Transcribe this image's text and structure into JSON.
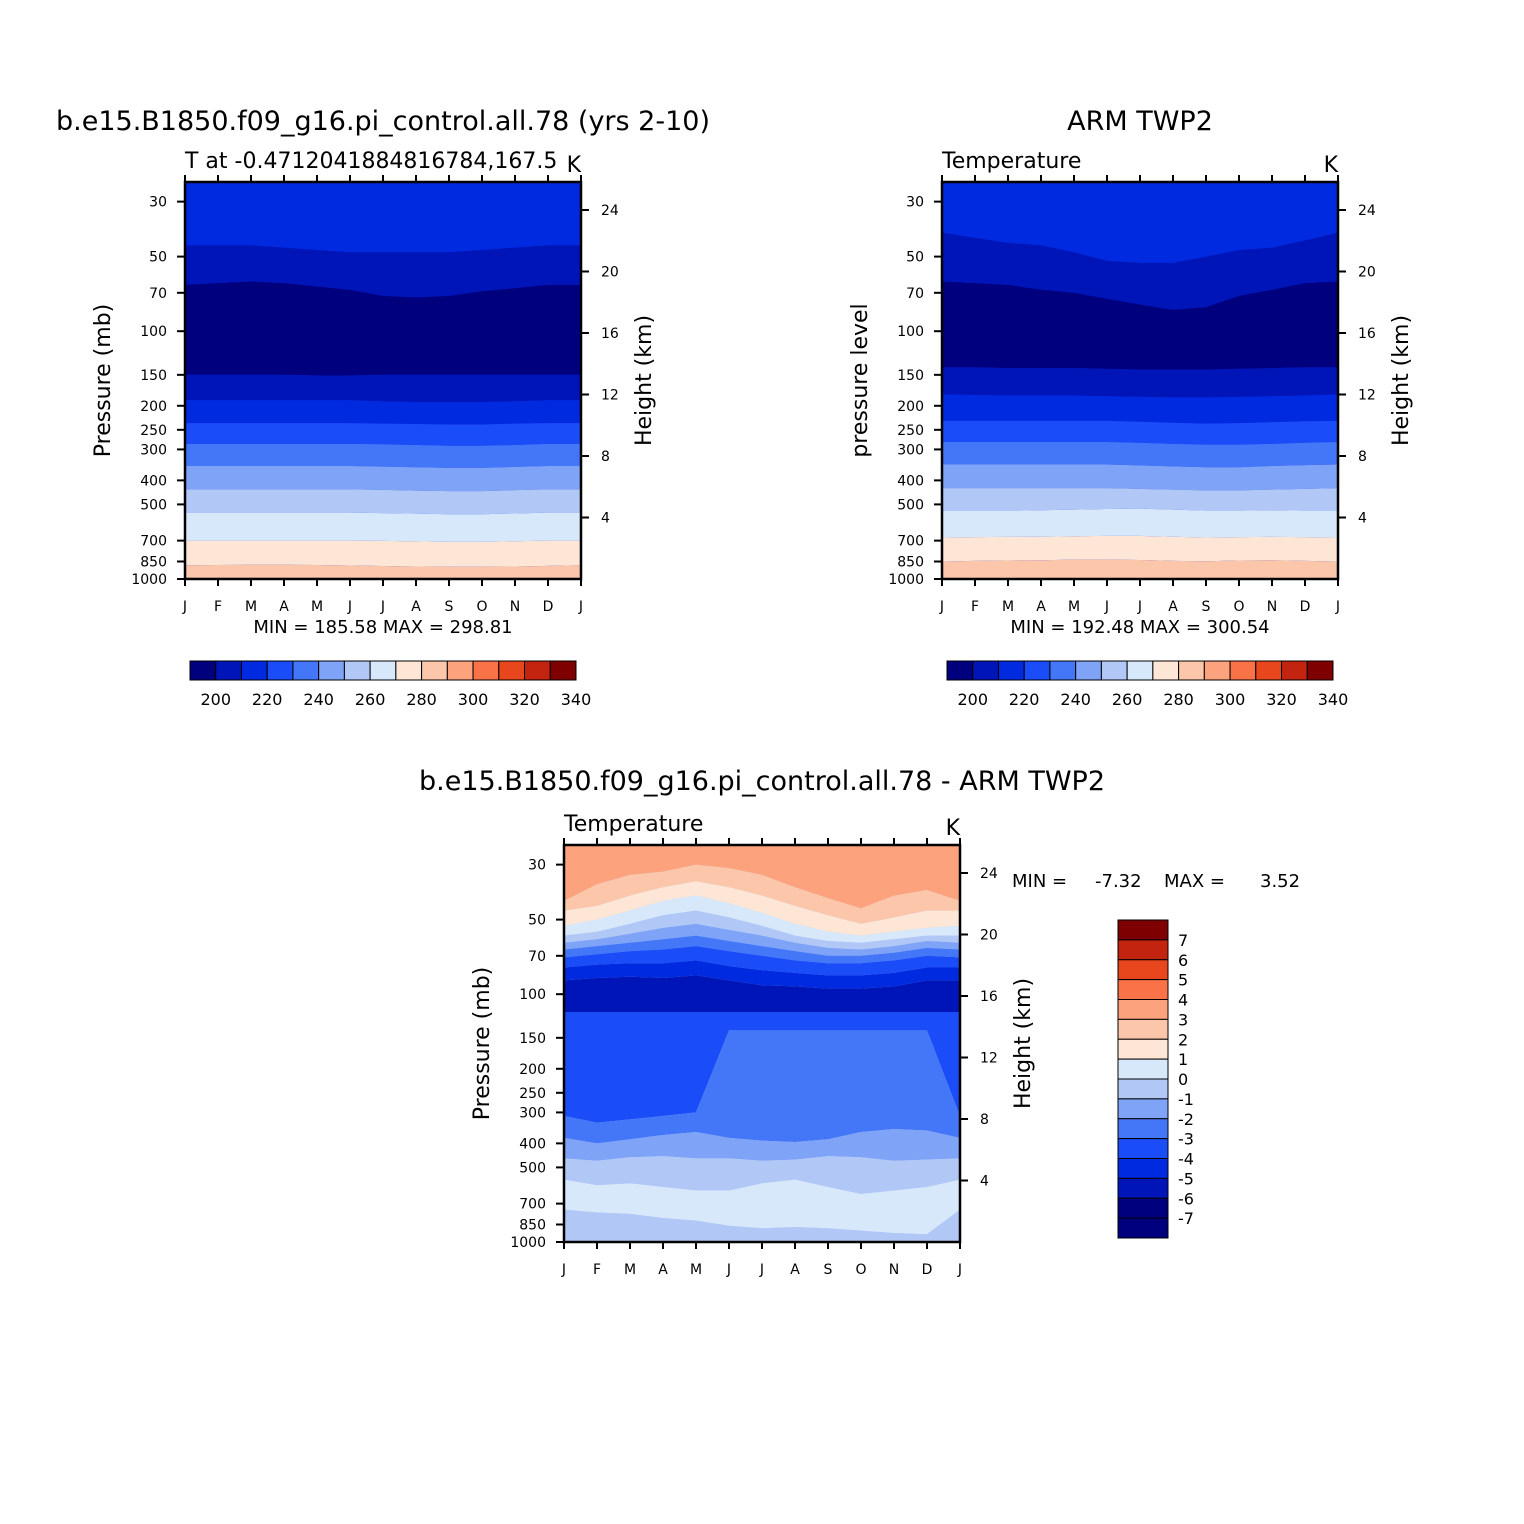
{
  "colors": {
    "temperature_palette": [
      "#00007f",
      "#0015b8",
      "#002ae0",
      "#1a4cf7",
      "#4477f7",
      "#7fa3f7",
      "#b1c8f7",
      "#d8e8fb",
      "#fde6d5",
      "#fcc6aa",
      "#fca27c",
      "#fa7247",
      "#e8461c",
      "#c2240f",
      "#7f0000"
    ],
    "difference_palette": [
      "#00007f",
      "#0015b8",
      "#002ae0",
      "#1a4cf7",
      "#4477f7",
      "#7fa3f7",
      "#b1c8f7",
      "#d8e8fb",
      "#fde6d5",
      "#fcc6aa",
      "#fca27c",
      "#fa7247",
      "#e8461c",
      "#c2240f",
      "#7f0000"
    ]
  },
  "chart_data": [
    {
      "id": "model",
      "type": "contour",
      "title": "b.e15.B1850.f09_g16.pi_control.all.78 (yrs 2-10)",
      "subtitle_left": "T at -0.4712041884816784,167.5",
      "subtitle_right": "K",
      "ylabel": "Pressure (mb)",
      "ylabel_right": "Height (km)",
      "y_scale": "log",
      "ylim": [
        1000,
        25
      ],
      "pressure_ticks": [
        "30",
        "50",
        "70",
        "100",
        "150",
        "200",
        "250",
        "300",
        "400",
        "500",
        "700",
        "850",
        "1000"
      ],
      "height_ticks": [
        "24",
        "20",
        "16",
        "12",
        "8",
        "4"
      ],
      "months": [
        "J",
        "F",
        "M",
        "A",
        "M",
        "J",
        "J",
        "A",
        "S",
        "O",
        "N",
        "D",
        "J"
      ],
      "minmax": "MIN =  185.58  MAX =  298.81",
      "colorbar_labels": [
        "200",
        "220",
        "240",
        "260",
        "280",
        "300",
        "320",
        "340"
      ],
      "levels": [
        195,
        200,
        205,
        210,
        215,
        220,
        230,
        240,
        250,
        260,
        270,
        280,
        290,
        300,
        310,
        320,
        330,
        340
      ],
      "boundaries": [
        {
          "level": 205,
          "pressure": [
            45,
            45,
            45,
            46,
            47,
            48,
            48,
            48,
            48,
            47,
            46,
            45,
            45
          ]
        },
        {
          "level": 200,
          "pressure": [
            65,
            64,
            63,
            64,
            66,
            68,
            72,
            73,
            72,
            69,
            67,
            65,
            65
          ]
        },
        {
          "level": 205,
          "pressure": [
            150,
            150,
            150,
            150,
            151,
            151,
            150,
            150,
            150,
            150,
            150,
            150,
            150
          ]
        },
        {
          "level": 215,
          "pressure": [
            190,
            190,
            190,
            190,
            190,
            190,
            192,
            193,
            193,
            193,
            192,
            190,
            190
          ]
        },
        {
          "level": 225,
          "pressure": [
            235,
            235,
            235,
            235,
            235,
            235,
            236,
            237,
            238,
            238,
            236,
            235,
            235
          ]
        },
        {
          "level": 235,
          "pressure": [
            285,
            285,
            285,
            285,
            285,
            285,
            286,
            288,
            290,
            290,
            288,
            285,
            285
          ]
        },
        {
          "level": 245,
          "pressure": [
            350,
            350,
            350,
            350,
            350,
            350,
            352,
            354,
            356,
            356,
            353,
            350,
            350
          ]
        },
        {
          "level": 255,
          "pressure": [
            435,
            435,
            435,
            435,
            435,
            435,
            437,
            440,
            442,
            442,
            438,
            435,
            435
          ]
        },
        {
          "level": 265,
          "pressure": [
            540,
            540,
            540,
            540,
            540,
            540,
            542,
            545,
            548,
            548,
            544,
            540,
            540
          ]
        },
        {
          "level": 275,
          "pressure": [
            700,
            700,
            700,
            700,
            700,
            700,
            702,
            705,
            708,
            708,
            704,
            700,
            700
          ]
        },
        {
          "level": 285,
          "pressure": [
            880,
            878,
            876,
            876,
            878,
            882,
            886,
            890,
            892,
            892,
            890,
            885,
            880
          ]
        },
        {
          "level": 295,
          "pressure": [
            990,
            990,
            990,
            990,
            990,
            990,
            990,
            990,
            990,
            990,
            990,
            990,
            990
          ]
        }
      ]
    },
    {
      "id": "obs",
      "type": "contour",
      "title": "ARM TWP2",
      "subtitle_left": "Temperature",
      "subtitle_right": "K",
      "ylabel": "pressure level",
      "ylabel_right": "Height (km)",
      "y_scale": "log",
      "ylim": [
        1000,
        25
      ],
      "pressure_ticks": [
        "30",
        "50",
        "70",
        "100",
        "150",
        "200",
        "250",
        "300",
        "400",
        "500",
        "700",
        "850",
        "1000"
      ],
      "height_ticks": [
        "24",
        "20",
        "16",
        "12",
        "8",
        "4"
      ],
      "months": [
        "J",
        "F",
        "M",
        "A",
        "M",
        "J",
        "J",
        "A",
        "S",
        "O",
        "N",
        "D",
        "J"
      ],
      "minmax": "MIN =  192.48  MAX =  300.54",
      "colorbar_labels": [
        "200",
        "220",
        "240",
        "260",
        "280",
        "300",
        "320",
        "340"
      ],
      "boundaries": [
        {
          "level": 205,
          "pressure": [
            40,
            42,
            44,
            45,
            48,
            52,
            53,
            53,
            50,
            47,
            46,
            43,
            40
          ]
        },
        {
          "level": 200,
          "pressure": [
            63,
            64,
            65,
            68,
            70,
            74,
            78,
            82,
            80,
            72,
            68,
            64,
            63
          ]
        },
        {
          "level": 205,
          "pressure": [
            140,
            140,
            141,
            141,
            141,
            142,
            143,
            143,
            143,
            142,
            141,
            140,
            140
          ]
        },
        {
          "level": 215,
          "pressure": [
            180,
            181,
            182,
            182,
            182,
            183,
            184,
            185,
            185,
            184,
            183,
            182,
            180
          ]
        },
        {
          "level": 225,
          "pressure": [
            230,
            230,
            230,
            230,
            230,
            230,
            232,
            234,
            236,
            235,
            233,
            231,
            230
          ]
        },
        {
          "level": 235,
          "pressure": [
            280,
            280,
            280,
            280,
            280,
            280,
            282,
            285,
            287,
            287,
            285,
            282,
            280
          ]
        },
        {
          "level": 245,
          "pressure": [
            345,
            345,
            345,
            345,
            345,
            345,
            348,
            351,
            354,
            354,
            350,
            347,
            345
          ]
        },
        {
          "level": 255,
          "pressure": [
            430,
            430,
            430,
            430,
            430,
            430,
            433,
            436,
            439,
            439,
            436,
            433,
            430
          ]
        },
        {
          "level": 265,
          "pressure": [
            530,
            530,
            530,
            528,
            525,
            522,
            520,
            525,
            530,
            530,
            528,
            530,
            530
          ]
        },
        {
          "level": 275,
          "pressure": [
            680,
            678,
            676,
            675,
            672,
            670,
            670,
            675,
            680,
            678,
            676,
            678,
            680
          ]
        },
        {
          "level": 285,
          "pressure": [
            850,
            845,
            842,
            840,
            835,
            835,
            838,
            845,
            848,
            842,
            840,
            845,
            850
          ]
        }
      ]
    },
    {
      "id": "diff",
      "type": "contour",
      "title": "b.e15.B1850.f09_g16.pi_control.all.78 - ARM TWP2",
      "subtitle_left": "Temperature",
      "subtitle_right": "K",
      "ylabel": "Pressure (mb)",
      "ylabel_right": "Height (km)",
      "y_scale": "log",
      "ylim": [
        1000,
        25
      ],
      "pressure_ticks": [
        "30",
        "50",
        "70",
        "100",
        "150",
        "200",
        "250",
        "300",
        "400",
        "500",
        "700",
        "850",
        "1000"
      ],
      "height_ticks": [
        "24",
        "20",
        "16",
        "12",
        "8",
        "4"
      ],
      "months": [
        "J",
        "F",
        "M",
        "A",
        "M",
        "J",
        "J",
        "A",
        "S",
        "O",
        "N",
        "D",
        "J"
      ],
      "minmax_label": "MIN =",
      "minmax_min": "-7.32",
      "minmax_max_label": "MAX =",
      "minmax_max": "3.52",
      "colorbar_labels": [
        "7",
        "6",
        "5",
        "4",
        "3",
        "2",
        "1",
        "0",
        "-1",
        "-2",
        "-3",
        "-4",
        "-5",
        "-6",
        "-7"
      ],
      "bands": [
        {
          "value": 2.5,
          "top": [
            25,
            25,
            25,
            25,
            25,
            25,
            25,
            25,
            25,
            25,
            25,
            25,
            25
          ]
        },
        {
          "value": 1.5,
          "top": [
            42,
            36,
            33,
            32,
            30,
            31,
            33,
            37,
            41,
            45,
            40,
            38,
            42
          ]
        },
        {
          "value": 0.5,
          "top": [
            46,
            44,
            40,
            37,
            35,
            37,
            40,
            44,
            48,
            52,
            49,
            46,
            46
          ]
        },
        {
          "value": -0.5,
          "top": [
            53,
            50,
            46,
            42,
            40,
            43,
            47,
            52,
            56,
            58,
            56,
            54,
            53
          ]
        },
        {
          "value": -1.5,
          "top": [
            58,
            56,
            52,
            48,
            46,
            49,
            53,
            58,
            61,
            62,
            60,
            58,
            58
          ]
        },
        {
          "value": -2.5,
          "top": [
            62,
            60,
            57,
            54,
            52,
            55,
            58,
            62,
            65,
            66,
            64,
            61,
            62
          ]
        },
        {
          "value": -3.5,
          "top": [
            66,
            64,
            62,
            60,
            58,
            61,
            64,
            67,
            70,
            70,
            68,
            65,
            66
          ]
        },
        {
          "value": -4.5,
          "top": [
            71,
            69,
            67,
            66,
            64,
            67,
            70,
            73,
            75,
            75,
            73,
            70,
            71
          ]
        },
        {
          "value": -5.5,
          "top": [
            78,
            76,
            75,
            75,
            73,
            77,
            80,
            82,
            84,
            84,
            82,
            78,
            78
          ]
        },
        {
          "value": -6.5,
          "top": [
            88,
            86,
            85,
            86,
            84,
            88,
            92,
            93,
            95,
            95,
            93,
            88,
            88
          ]
        },
        {
          "value": -4.5,
          "top": [
            118,
            118,
            118,
            118,
            118,
            118,
            118,
            118,
            118,
            118,
            118,
            118,
            118
          ]
        },
        {
          "value": -3.5,
          "top": [
            310,
            330,
            320,
            310,
            300,
            140,
            140,
            140,
            140,
            140,
            140,
            140,
            310
          ]
        },
        {
          "value": -2.5,
          "top": [
            380,
            400,
            385,
            370,
            360,
            380,
            390,
            395,
            385,
            360,
            350,
            355,
            380
          ]
        },
        {
          "value": -1.5,
          "top": [
            460,
            470,
            455,
            450,
            460,
            460,
            470,
            465,
            450,
            455,
            470,
            465,
            460
          ]
        },
        {
          "value": -0.5,
          "top": [
            560,
            590,
            580,
            600,
            620,
            620,
            580,
            560,
            600,
            640,
            620,
            600,
            560
          ]
        },
        {
          "value": -1.5,
          "top": [
            740,
            760,
            770,
            800,
            820,
            860,
            880,
            870,
            880,
            900,
            920,
            930,
            740
          ]
        }
      ]
    }
  ]
}
